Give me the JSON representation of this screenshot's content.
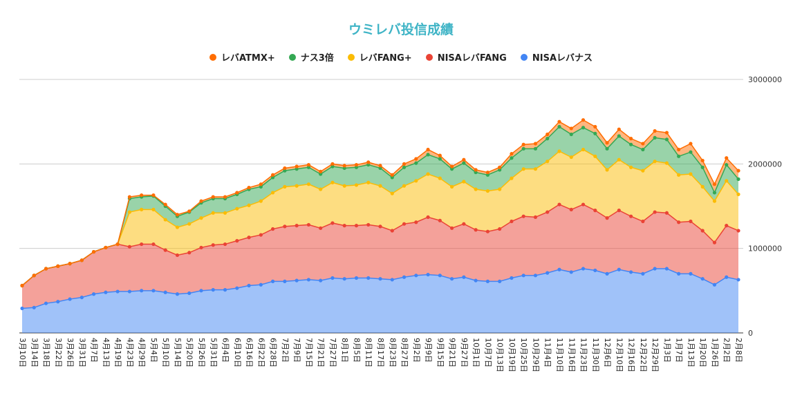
{
  "chart_data": {
    "type": "area",
    "stacked": true,
    "title": "ウミレバ投信成績",
    "legend_position": "top",
    "y_axis_position": "right",
    "grid": true,
    "ylim": [
      0,
      3000000
    ],
    "yticks": [
      "0",
      "1000000",
      "2000000",
      "3000000"
    ],
    "categories": [
      "3月10日",
      "3月14日",
      "3月18日",
      "3月22日",
      "3月26日",
      "3月31日",
      "4月7日",
      "4月13日",
      "4月19日",
      "4月23日",
      "4月29日",
      "5月4日",
      "5月10日",
      "5月14日",
      "5月20日",
      "5月26日",
      "5月31日",
      "6月4日",
      "6月10日",
      "6月16日",
      "6月22日",
      "6月28日",
      "7月2日",
      "7月9日",
      "7月15日",
      "7月21日",
      "7月27日",
      "8月1日",
      "8月5日",
      "8月11日",
      "8月17日",
      "8月23日",
      "8月27日",
      "9月2日",
      "9月9日",
      "9月15日",
      "9月21日",
      "9月27日",
      "10月1日",
      "10月7日",
      "10月13日",
      "10月19日",
      "10月25日",
      "10月29日",
      "11月4日",
      "11月10日",
      "11月16日",
      "11月23日",
      "11月30日",
      "12月6日",
      "12月10日",
      "12月16日",
      "12月22日",
      "12月29日",
      "1月3日",
      "1月7日",
      "1月13日",
      "1月20日",
      "1月26日",
      "2月2日",
      "2月8日"
    ],
    "series": [
      {
        "name": "NISAレバナス",
        "color": "#4285f4",
        "values": [
          290000,
          300000,
          350000,
          370000,
          400000,
          420000,
          460000,
          480000,
          490000,
          490000,
          500000,
          500000,
          480000,
          460000,
          470000,
          500000,
          510000,
          510000,
          530000,
          560000,
          570000,
          610000,
          610000,
          620000,
          630000,
          620000,
          650000,
          640000,
          650000,
          650000,
          640000,
          630000,
          660000,
          680000,
          690000,
          680000,
          640000,
          660000,
          620000,
          610000,
          610000,
          650000,
          680000,
          680000,
          710000,
          750000,
          720000,
          760000,
          740000,
          700000,
          750000,
          720000,
          700000,
          760000,
          760000,
          700000,
          700000,
          640000,
          570000,
          660000,
          630000
        ]
      },
      {
        "name": "NISAレバFANG",
        "color": "#ea4335",
        "values": [
          270000,
          380000,
          410000,
          420000,
          420000,
          440000,
          500000,
          530000,
          560000,
          530000,
          550000,
          550000,
          500000,
          460000,
          480000,
          510000,
          530000,
          540000,
          560000,
          570000,
          590000,
          620000,
          650000,
          650000,
          650000,
          620000,
          650000,
          630000,
          620000,
          630000,
          620000,
          580000,
          630000,
          630000,
          680000,
          650000,
          600000,
          630000,
          600000,
          590000,
          620000,
          670000,
          700000,
          690000,
          720000,
          770000,
          740000,
          760000,
          710000,
          660000,
          700000,
          660000,
          620000,
          670000,
          660000,
          610000,
          620000,
          570000,
          500000,
          610000,
          580000
        ]
      },
      {
        "name": "レバFANG+",
        "color": "#fbbc04",
        "values": [
          0,
          0,
          0,
          0,
          0,
          0,
          0,
          0,
          0,
          410000,
          410000,
          410000,
          360000,
          330000,
          340000,
          350000,
          380000,
          370000,
          380000,
          380000,
          400000,
          430000,
          470000,
          470000,
          480000,
          460000,
          480000,
          470000,
          480000,
          500000,
          480000,
          440000,
          450000,
          490000,
          510000,
          500000,
          490000,
          500000,
          480000,
          480000,
          470000,
          510000,
          560000,
          570000,
          600000,
          630000,
          620000,
          650000,
          640000,
          570000,
          600000,
          580000,
          600000,
          600000,
          590000,
          560000,
          560000,
          520000,
          490000,
          530000,
          430000
        ]
      },
      {
        "name": "ナス3倍",
        "color": "#34a853",
        "values": [
          0,
          0,
          0,
          0,
          0,
          0,
          0,
          0,
          0,
          160000,
          150000,
          160000,
          160000,
          130000,
          140000,
          180000,
          170000,
          170000,
          170000,
          190000,
          170000,
          180000,
          190000,
          200000,
          200000,
          180000,
          190000,
          210000,
          210000,
          210000,
          210000,
          190000,
          220000,
          210000,
          230000,
          230000,
          210000,
          220000,
          200000,
          190000,
          230000,
          240000,
          240000,
          240000,
          270000,
          290000,
          270000,
          260000,
          270000,
          250000,
          280000,
          270000,
          250000,
          280000,
          280000,
          220000,
          260000,
          230000,
          100000,
          190000,
          180000
        ]
      },
      {
        "name": "レバATMX+",
        "color": "#ff6d01",
        "values": [
          0,
          0,
          0,
          0,
          0,
          0,
          0,
          0,
          0,
          20000,
          20000,
          10000,
          20000,
          20000,
          10000,
          20000,
          20000,
          20000,
          20000,
          20000,
          30000,
          30000,
          30000,
          30000,
          30000,
          30000,
          30000,
          30000,
          30000,
          30000,
          30000,
          30000,
          40000,
          50000,
          60000,
          40000,
          30000,
          40000,
          30000,
          30000,
          30000,
          50000,
          50000,
          60000,
          50000,
          60000,
          70000,
          90000,
          80000,
          70000,
          80000,
          70000,
          70000,
          80000,
          80000,
          80000,
          100000,
          80000,
          100000,
          80000,
          100000
        ]
      }
    ],
    "legend_order": [
      "レバATMX+",
      "ナス3倍",
      "レバFANG+",
      "NISAレバFANG",
      "NISAレバナス"
    ]
  }
}
